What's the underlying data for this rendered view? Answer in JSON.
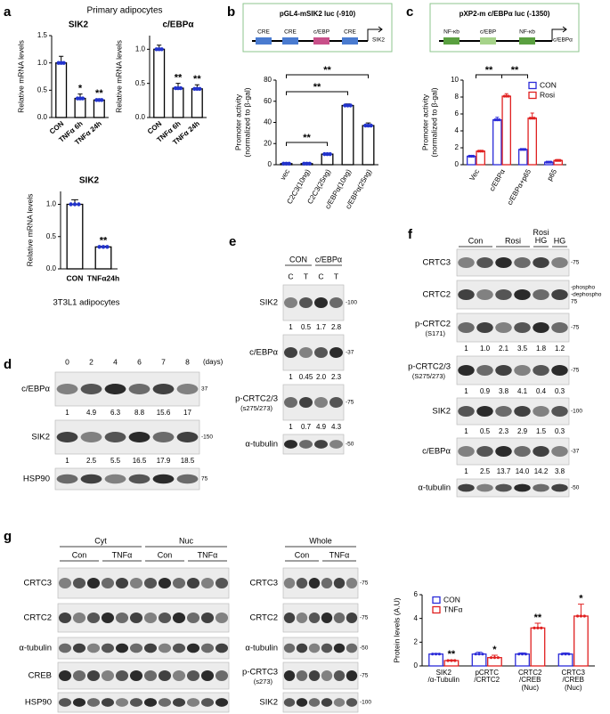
{
  "figure": {
    "panel_letters": [
      "a",
      "b",
      "c",
      "d",
      "e",
      "f",
      "g"
    ],
    "primary": "Primary adipocytes",
    "cell_line": "3T3L1 adipocytes",
    "promoters": [
      {
        "title": "pGL4-mSIK2 luc (-910)",
        "elements": [
          "CRE",
          "CRE",
          "c/EBP",
          "CRE",
          "SIK2"
        ]
      },
      {
        "title": "pXP2-m c/EBPα luc (-1350)",
        "elements": [
          "NF-κb",
          "c/EBP",
          "NF-κb",
          "c/EBPα"
        ]
      }
    ]
  },
  "chart_data": [
    {
      "type": "bar",
      "title": "SIK2",
      "ylabel": [
        "Relative mRNA levels"
      ],
      "categories": [
        "CON",
        "TNFα 6h",
        "TNFα 24h"
      ],
      "values": [
        1.0,
        0.35,
        0.32
      ],
      "errors": [
        0.12,
        0.08,
        0.02
      ],
      "significance": [
        null,
        "*",
        "**"
      ],
      "color": "#000000",
      "point_color": "#2233cc",
      "ylim": [
        0,
        1.5
      ],
      "yticks": [
        {
          "value": 0,
          "label": "0.0"
        },
        0.5,
        {
          "value": 1,
          "label": "1.0"
        },
        1.5
      ]
    },
    {
      "type": "bar",
      "title": "c/EBPα",
      "ylabel": [
        "Relative mRNA levels"
      ],
      "categories": [
        "CON",
        "TNFα 6h",
        "TNFα 24h"
      ],
      "values": [
        1.0,
        0.43,
        0.42
      ],
      "errors": [
        0.06,
        0.07,
        0.06
      ],
      "significance": [
        null,
        "**",
        "**"
      ],
      "color": "#000000",
      "point_color": "#2233cc",
      "ylim": [
        0,
        1.2
      ],
      "yticks": [
        {
          "value": 0,
          "label": "0.0"
        },
        0.5,
        {
          "value": 1,
          "label": "1.0"
        }
      ]
    },
    {
      "type": "bar",
      "title": "SIK2",
      "ylabel": [
        "Relative mRNA levels"
      ],
      "categories": [
        "CON",
        "TNFα24h"
      ],
      "values": [
        1.0,
        0.34
      ],
      "errors": [
        0.07,
        0.01
      ],
      "significance": [
        null,
        "**"
      ],
      "color": "#000000",
      "point_color": "#2233cc",
      "ylim": [
        0,
        1.2
      ],
      "yticks": [
        {
          "value": 0,
          "label": "0.0"
        },
        0.5,
        {
          "value": 1,
          "label": "1.0"
        }
      ]
    },
    {
      "type": "bar",
      "ylabel": [
        "Promoter activity",
        "(normalized to β-gal)"
      ],
      "categories": [
        "vec",
        "C2C3(10ng)",
        "C2C3(25ng)",
        "c/EBPα(10ng)",
        "c/EBPα(25ng)"
      ],
      "values": [
        1,
        1,
        10,
        56,
        37
      ],
      "errors": [
        0.5,
        0.5,
        1,
        1.5,
        2.5
      ],
      "color": "#000000",
      "point_color": "#2233cc",
      "ylim": [
        0,
        80
      ],
      "yticks": [
        0,
        20,
        40,
        60,
        80
      ],
      "brackets": [
        {
          "text": "**",
          "between": [
            0,
            2
          ]
        },
        {
          "text": "**",
          "between": [
            0,
            3
          ]
        },
        {
          "text": "**",
          "between": [
            0,
            4
          ]
        }
      ]
    },
    {
      "type": "bar",
      "ylabel": [
        "Promoter activity",
        "(normalized to β-gal)"
      ],
      "categories": [
        "Vec",
        "c/EBPα",
        "c/EBPα+p65",
        "p65"
      ],
      "series": [
        {
          "name": "CON",
          "color": "#2b2bd8",
          "values": [
            1.0,
            5.3,
            1.8,
            0.3
          ],
          "errors": [
            0.1,
            0.3,
            0.1,
            0.05
          ]
        },
        {
          "name": "Rosi",
          "color": "#e02020",
          "values": [
            1.6,
            8.1,
            5.5,
            0.5
          ],
          "errors": [
            0.1,
            0.3,
            0.6,
            0.1
          ]
        }
      ],
      "ylim": [
        0,
        10
      ],
      "yticks": [
        0,
        2,
        4,
        6,
        8,
        10
      ],
      "legend": "upper right",
      "brackets": [
        {
          "text": "**",
          "between": [
            0,
            1
          ]
        },
        {
          "text": "**",
          "between": [
            1,
            2
          ]
        }
      ]
    },
    {
      "type": "bar",
      "ylabel": [
        "Protein levels (A.U)"
      ],
      "categories": [
        "SIK2\n/α-Tubulin",
        "pCRTC\n/CRTC2",
        "CRTC2\n/CREB\n(Nuc)",
        "CRTC3\n/CREB\n(Nuc)"
      ],
      "series": [
        {
          "name": "CON",
          "color": "#2b2bd8",
          "values": [
            1,
            1,
            1,
            1
          ],
          "errors": [
            0.05,
            0.15,
            0.1,
            0.1
          ]
        },
        {
          "name": "TNFα",
          "color": "#e02020",
          "values": [
            0.45,
            0.7,
            3.2,
            4.2
          ],
          "errors": [
            0.05,
            0.2,
            0.4,
            1.0
          ],
          "significance": [
            "**",
            "*",
            "**",
            "*"
          ]
        }
      ],
      "ylim": [
        0,
        6
      ],
      "yticks": [
        0,
        2,
        4,
        6
      ],
      "legend": "upper left"
    }
  ],
  "blots": [
    {
      "lanes": [
        "0",
        "2",
        "4",
        "6",
        "7",
        "8"
      ],
      "lanes_note": "(days)",
      "rows": [
        {
          "label": "c/EBPα",
          "mw": "37",
          "quant": [
            "1",
            "4.9",
            "6.3",
            "8.8",
            "15.6",
            "17"
          ]
        },
        {
          "label": "SIK2",
          "mw": "-150",
          "quant": [
            "1",
            "2.5",
            "5.5",
            "16.5",
            "17.9",
            "18.5"
          ]
        },
        {
          "label": "HSP90",
          "mw": "75"
        }
      ]
    },
    {
      "groups": [
        "CON",
        "c/EBPα"
      ],
      "lanes": [
        "C",
        "T",
        "C",
        "T"
      ],
      "rows": [
        {
          "label": "SIK2",
          "mw": "-100",
          "quant": [
            "1",
            "0.5",
            "1.7",
            "2.8"
          ]
        },
        {
          "label": "c/EBPα",
          "mw": "-37",
          "quant": [
            "1",
            "0.45",
            "2.0",
            "2.3"
          ]
        },
        {
          "label": "p-CRTC2/3",
          "sub": "(s275/273)",
          "mw": "-75",
          "quant": [
            "1",
            "0.7",
            "4.9",
            "4.3"
          ]
        },
        {
          "label": "α-tubulin",
          "mw": "-50"
        }
      ]
    },
    {
      "groups": [
        "Con",
        "Rosi",
        "Rosi\nHG",
        "HG"
      ],
      "rows": [
        {
          "label": "CRTC3",
          "mw": "-75"
        },
        {
          "label": "CRTC2",
          "mw": [
            "-phospho",
            "-dephospho",
            "75"
          ]
        },
        {
          "label": "p-CRTC2",
          "sub": "(S171)",
          "mw": "-75",
          "quant": [
            "1",
            "1.0",
            "2.1",
            "3.5",
            "1.8",
            "1.2"
          ]
        },
        {
          "label": "p-CRTC2/3",
          "sub": "(S275/273)",
          "mw": "-75",
          "quant": [
            "1",
            "0.9",
            "3.8",
            "4.1",
            "0.4",
            "0.3"
          ]
        },
        {
          "label": "SIK2",
          "mw": "-100",
          "quant": [
            "1",
            "0.5",
            "2.3",
            "2.9",
            "1.5",
            "0.3"
          ]
        },
        {
          "label": "c/EBPα",
          "mw": "-37",
          "quant": [
            "1",
            "2.5",
            "13.7",
            "14.0",
            "14.2",
            "3.8"
          ]
        },
        {
          "label": "α-tubulin",
          "mw": "-50"
        }
      ]
    },
    {
      "groups": [
        "Cyt",
        "Nuc"
      ],
      "subgroups": [
        "Con",
        "TNFα",
        "Con",
        "TNFα"
      ],
      "rows": [
        {
          "label": "CRTC3"
        },
        {
          "label": "CRTC2"
        },
        {
          "label": "α-tubulin"
        },
        {
          "label": "CREB"
        },
        {
          "label": "HSP90"
        }
      ]
    },
    {
      "groups": [
        "Whole"
      ],
      "subgroups": [
        "Con",
        "TNFα"
      ],
      "rows": [
        {
          "label": "CRTC3",
          "mw": "-75"
        },
        {
          "label": "CRTC2",
          "mw": "-75"
        },
        {
          "label": "α-tubulin",
          "mw": "-50"
        },
        {
          "label": "p-CRTC3",
          "sub": "(s273)",
          "mw": "-75"
        },
        {
          "label": "SIK2",
          "mw": "-100"
        }
      ]
    }
  ]
}
